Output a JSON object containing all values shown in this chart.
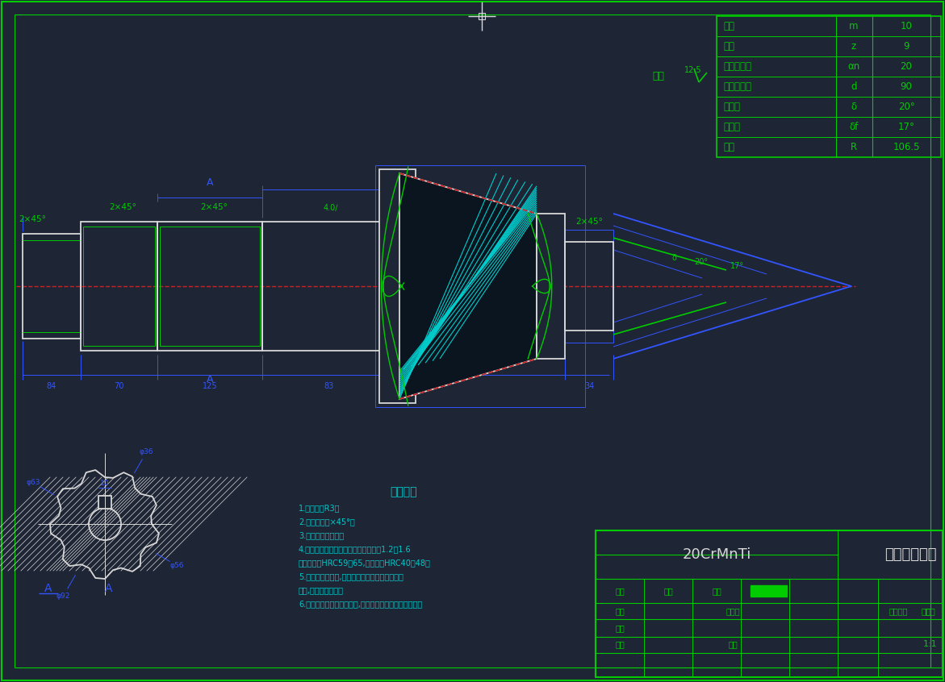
{
  "bg_color": "#1e2535",
  "wh": "#d8d8d8",
  "gr": "#00cc00",
  "bl": "#3355ff",
  "rd": "#cc2222",
  "cy": "#00cccc",
  "title": "主动锥齿轮轴",
  "material": "20CrMnTi",
  "scale": "1:1",
  "table_data": [
    [
      "模数",
      "m",
      "10"
    ],
    [
      "齿数",
      "z",
      "9"
    ],
    [
      "法向齿形角",
      "αn",
      "20"
    ],
    [
      "分度圆直径",
      "d",
      "90"
    ],
    [
      "分锥角",
      "δ",
      "20°"
    ],
    [
      "根锥角",
      "δf",
      "17°"
    ],
    [
      "锥距",
      "R",
      "106.5"
    ]
  ],
  "tech_req_title": "技术要求",
  "tech_req": [
    "1.未注圆角R3；",
    "2.未注倒角２×45°；",
    "3.校正去锐边毛刺；",
    "4.齿面及基准面接触斑点人，接触面积1.2～1.6",
    "；液氨氮化HRC59～65,芯部硬度HRC40～48；",
    "5.各件表面处处理,不允许有裂纹、毛刺、碰伤、",
    "划伤,和标注等缺陷；",
    "6.磁粉探伤后光学评、修整,再和试车和磁粉探伤等验收；"
  ],
  "roughness_note": "其余",
  "roughness_val": "12.5"
}
